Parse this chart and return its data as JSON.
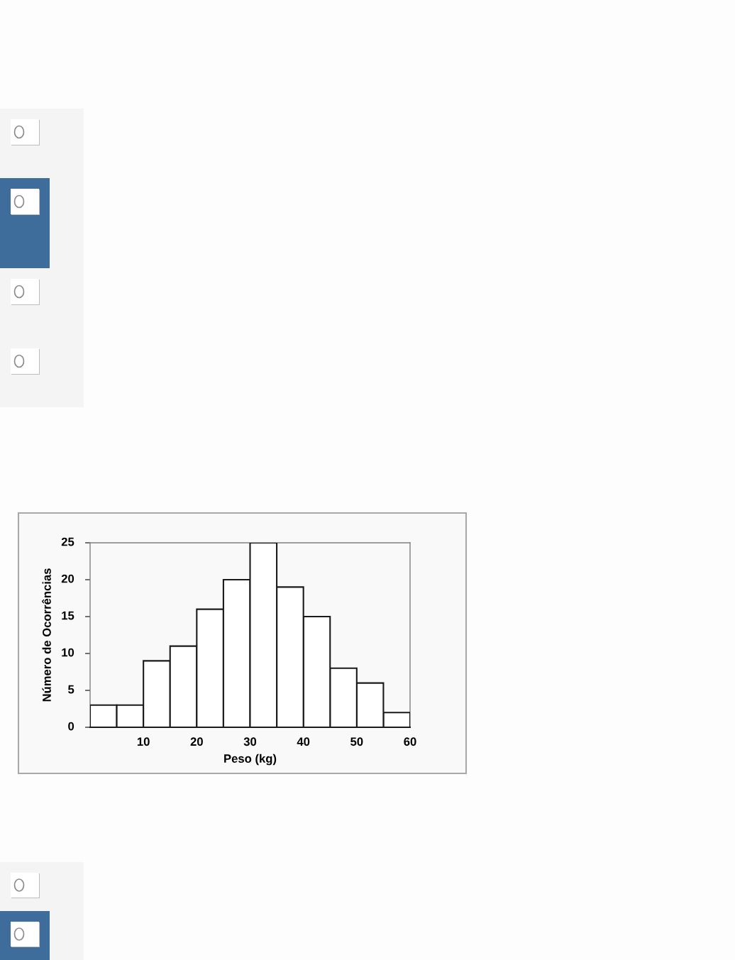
{
  "chart_data": {
    "type": "histogram",
    "xlabel": "Peso (kg)",
    "ylabel": "Número de Ocorrências",
    "bins": [
      0,
      5,
      10,
      15,
      20,
      25,
      30,
      35,
      40,
      45,
      50,
      55,
      60
    ],
    "values": [
      3,
      3,
      9,
      11,
      16,
      20,
      25,
      19,
      15,
      8,
      6,
      2
    ],
    "color": "#ffffff",
    "xlim": [
      0,
      60
    ],
    "xticks": [
      10,
      20,
      30,
      40,
      50,
      60
    ],
    "ylim": [
      0,
      25
    ],
    "yticks": [
      0,
      5,
      10,
      15,
      20,
      25
    ],
    "grid": false,
    "legend": false
  }
}
